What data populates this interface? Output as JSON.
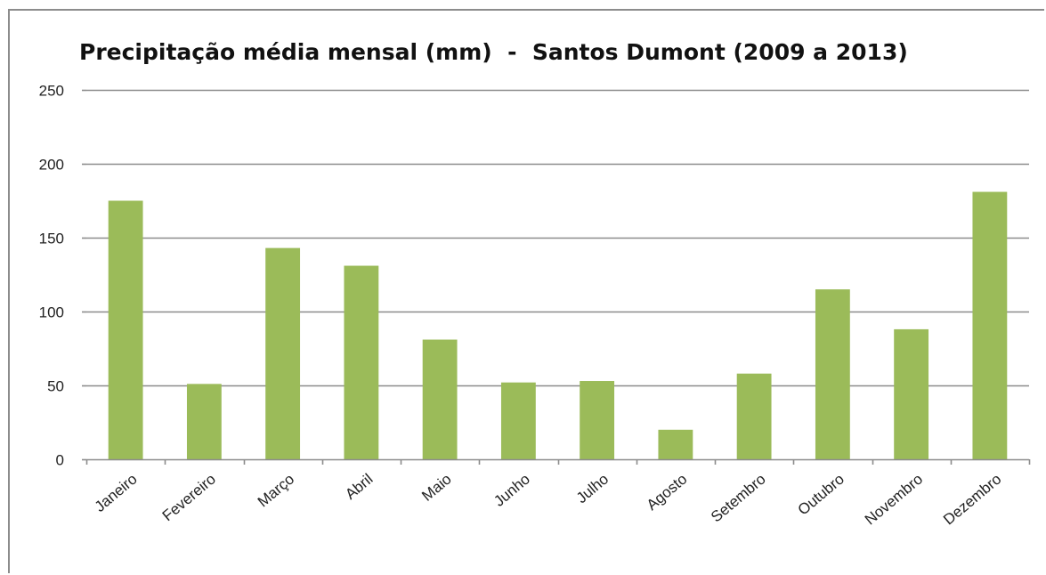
{
  "chart_data": {
    "type": "bar",
    "title": "Precipitação média mensal (mm)  -  Santos Dumont (2009 a 2013)",
    "xlabel": "",
    "ylabel": "",
    "categories": [
      "Janeiro",
      "Fevereiro",
      "Março",
      "Abril",
      "Maio",
      "Junho",
      "Julho",
      "Agosto",
      "Setembro",
      "Outubro",
      "Novembro",
      "Dezembro"
    ],
    "values": [
      175,
      51,
      143,
      131,
      81,
      52,
      53,
      20,
      58,
      115,
      88,
      181
    ],
    "ylim": [
      0,
      250
    ],
    "yticks": [
      0,
      50,
      100,
      150,
      200,
      250
    ],
    "grid": true,
    "legend": "none",
    "colors": {
      "bar": "#9BBB59",
      "grid": "#8c8c8c",
      "axis": "#8c8c8c",
      "frame": "#8c8c8c"
    }
  }
}
